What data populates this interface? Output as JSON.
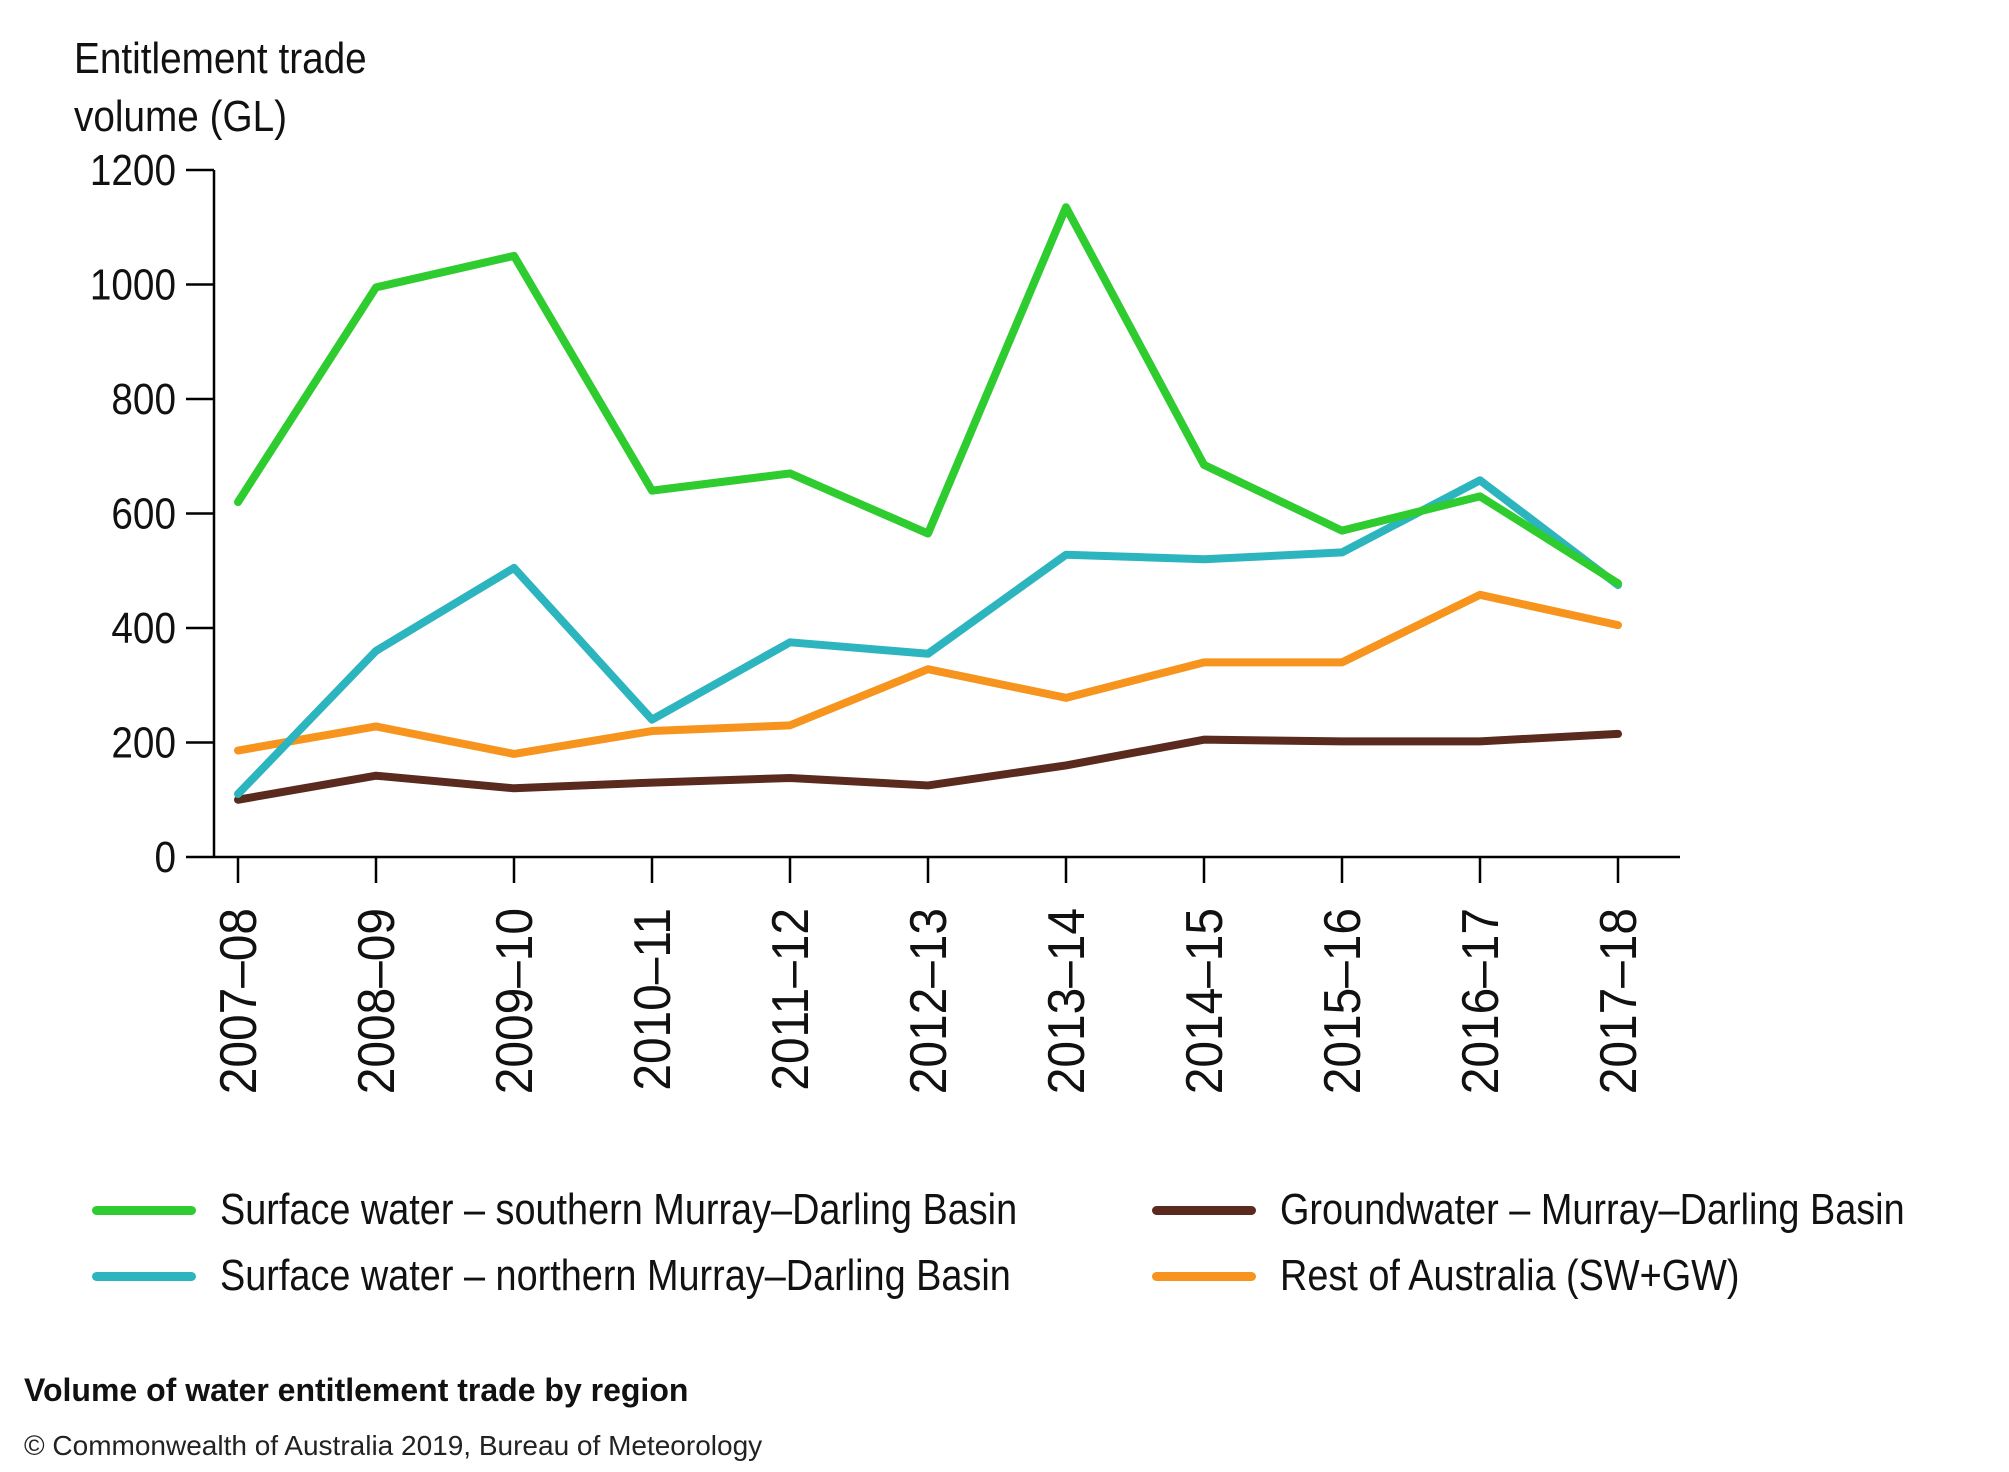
{
  "chart_data": {
    "type": "line",
    "ylabel": "Entitlement trade volume (GL)",
    "ylim": [
      0,
      1200
    ],
    "yticks": [
      0,
      200,
      400,
      600,
      800,
      1000,
      1200
    ],
    "categories": [
      "2007–08",
      "2008–09",
      "2009–10",
      "2010–11",
      "2011–12",
      "2012–13",
      "2013–14",
      "2014–15",
      "2015–16",
      "2016–17",
      "2017–18"
    ],
    "series": [
      {
        "name": "Surface water – southern Murray–Darling Basin",
        "color": "#2ecc2e",
        "values": [
          620,
          995,
          1050,
          640,
          670,
          565,
          1135,
          685,
          570,
          630,
          478
        ]
      },
      {
        "name": "Surface water – northern Murray–Darling Basin",
        "color": "#2db5bf",
        "values": [
          110,
          360,
          505,
          240,
          375,
          355,
          528,
          520,
          532,
          658,
          475
        ]
      },
      {
        "name": "Groundwater – Murray–Darling Basin",
        "color": "#5a2a1e",
        "values": [
          100,
          142,
          120,
          130,
          138,
          125,
          160,
          205,
          202,
          202,
          215
        ]
      },
      {
        "name": "Rest of Australia (SW+GW)",
        "color": "#f7941d",
        "values": [
          186,
          228,
          180,
          220,
          230,
          328,
          278,
          340,
          340,
          458,
          405
        ]
      }
    ],
    "grid": false,
    "legend": "bottom"
  },
  "ylabel_lines": [
    "Entitlement trade",
    "volume (GL)"
  ],
  "caption": "Volume of water entitlement trade by region",
  "credit": "© Commonwealth of Australia 2019, Bureau of Meteorology"
}
